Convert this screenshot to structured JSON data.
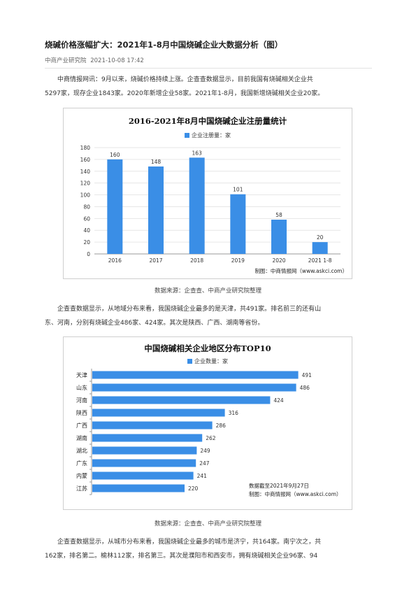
{
  "article": {
    "title": "烧碱价格涨幅扩大：2021年1-8月中国烧碱企业大数据分析（图）",
    "source": "中商产业研究院",
    "date": "2021-10-08 17:42",
    "para1": [
      "中商情报网讯：9月以来，烧碱价格持续上涨。企查查数据显示，目前我国有烧碱相关企业共",
      "5297家，现存企业1843家。2020年新增企业58家。2021年1-8月，我国新增烧碱相关企业20家。"
    ],
    "caption1": "数据来源：企查查、中商产业研究院整理",
    "para2": [
      "企查查数据显示，从地域分布来看，我国烧碱企业最多的是天津，共491家。排名前三的还有山",
      "东、河南，分别有烧碱企业486家、424家。其次是陕西、广西、湖南等省份。"
    ],
    "caption2": "数据来源：企查查、中商产业研究院整理",
    "para3": [
      "企查查数据显示，从城市分布来看，我国烧碱企业最多的城市是济宁，共164家。南宁次之，共",
      "162家，排名第二。榆林112家，排名第三。其次是濮阳市和西安市，拥有烧碱相关企业96家、94"
    ]
  },
  "watermark": "中商产业研究院",
  "chart_data": [
    {
      "type": "bar",
      "title": "2016-2021年8月中国烧碱企业注册量统计",
      "legend": "企业注册量：家",
      "categories": [
        "2016",
        "2017",
        "2018",
        "2019",
        "2020",
        "2021 1-8"
      ],
      "values": [
        160,
        148,
        163,
        101,
        58,
        20
      ],
      "yticks": [
        "0",
        "20",
        "40",
        "60",
        "80",
        "100",
        "120",
        "140",
        "160",
        "180"
      ],
      "ylim": [
        0,
        180
      ],
      "grid": true,
      "bar_color": "#3a8ee6",
      "credit": "制图：中商情报网（www.askci.com）"
    },
    {
      "type": "bar",
      "orientation": "horizontal",
      "title": "中国烧碱相关企业地区分布TOP10",
      "legend": "企业数量：家",
      "categories": [
        "天津",
        "山东",
        "河南",
        "陕西",
        "广西",
        "湖南",
        "湖北",
        "广东",
        "内蒙",
        "江苏"
      ],
      "values": [
        491,
        486,
        424,
        316,
        286,
        262,
        249,
        247,
        241,
        220
      ],
      "bar_color": "#3a8ee6",
      "note": "数据截至2021年9月27日",
      "credit": "制图：中商情报网（www.askci.com）"
    }
  ]
}
